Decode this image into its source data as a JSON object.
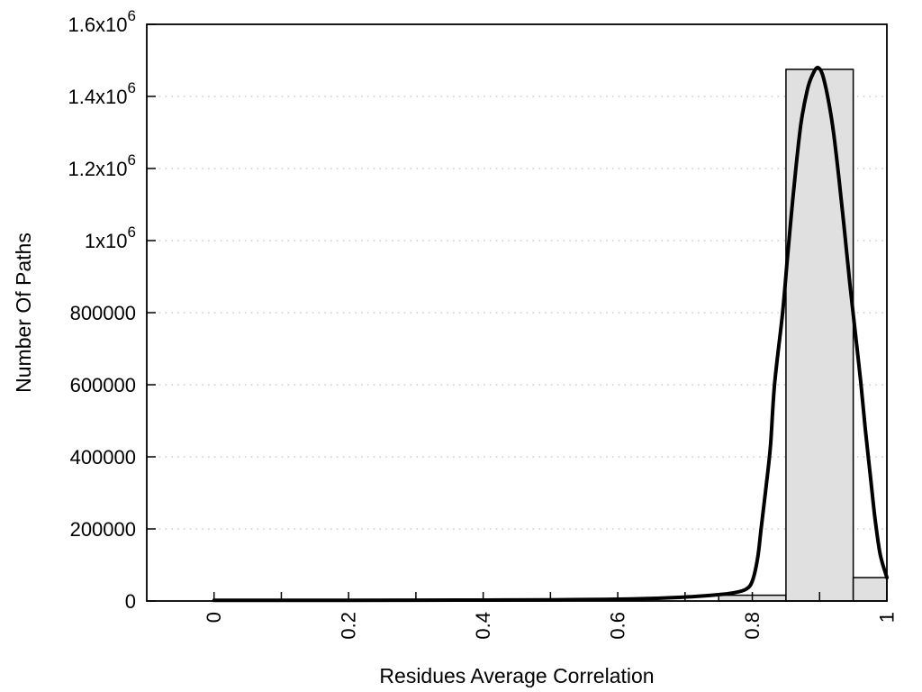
{
  "chart_data": {
    "type": "bar",
    "subtype": "histogram-with-fit-curve",
    "title": "",
    "xlabel": "Residues Average Correlation",
    "ylabel": "Number Of Paths",
    "xlim": [
      -0.1,
      1.0
    ],
    "ylim": [
      0,
      1600000
    ],
    "grid": "horizontal dotted lines at labeled y ticks",
    "legend": "none",
    "xticks": [
      0,
      0.1,
      0.2,
      0.3,
      0.4,
      0.5,
      0.6,
      0.7,
      0.8,
      0.9,
      1.0
    ],
    "xtick_labels": [
      {
        "value": 0.0,
        "label": "0"
      },
      {
        "value": 0.2,
        "label": "0.2"
      },
      {
        "value": 0.4,
        "label": "0.4"
      },
      {
        "value": 0.6,
        "label": "0.6"
      },
      {
        "value": 0.8,
        "label": "0.8"
      },
      {
        "value": 1.0,
        "label": "1"
      }
    ],
    "ytick_labels": [
      {
        "value": 0,
        "label": "0"
      },
      {
        "value": 200000,
        "label": "200000"
      },
      {
        "value": 400000,
        "label": "400000"
      },
      {
        "value": 600000,
        "label": "600000"
      },
      {
        "value": 800000,
        "label": "800000"
      },
      {
        "value": 1000000,
        "label": "1x10^6"
      },
      {
        "value": 1200000,
        "label": "1.2x10^6"
      },
      {
        "value": 1400000,
        "label": "1.4x10^6"
      },
      {
        "value": 1600000,
        "label": "1.6x10^6"
      }
    ],
    "bars": {
      "series_name": "path-count-histogram",
      "bin_width": 0.1,
      "items": [
        {
          "x_start": 0.75,
          "x_end": 0.85,
          "count": 16000
        },
        {
          "x_start": 0.85,
          "x_end": 0.95,
          "count": 1475000
        },
        {
          "x_start": 0.95,
          "x_end": 1.0,
          "count": 65000
        }
      ]
    },
    "curve": {
      "series_name": "fit-curve",
      "peak": {
        "x": 0.897,
        "y": 1480000
      },
      "points": [
        [
          0.0,
          2000
        ],
        [
          0.1,
          2000
        ],
        [
          0.2,
          2000
        ],
        [
          0.3,
          2200
        ],
        [
          0.4,
          2500
        ],
        [
          0.5,
          3200
        ],
        [
          0.58,
          4500
        ],
        [
          0.64,
          6500
        ],
        [
          0.7,
          11000
        ],
        [
          0.74,
          16000
        ],
        [
          0.77,
          22000
        ],
        [
          0.79,
          32000
        ],
        [
          0.8,
          55000
        ],
        [
          0.808,
          120000
        ],
        [
          0.813,
          200000
        ],
        [
          0.82,
          310000
        ],
        [
          0.827,
          430000
        ],
        [
          0.833,
          600000
        ],
        [
          0.845,
          800000
        ],
        [
          0.853,
          970000
        ],
        [
          0.862,
          1150000
        ],
        [
          0.872,
          1320000
        ],
        [
          0.882,
          1420000
        ],
        [
          0.89,
          1462000
        ],
        [
          0.897,
          1480000
        ],
        [
          0.904,
          1462000
        ],
        [
          0.912,
          1400000
        ],
        [
          0.92,
          1310000
        ],
        [
          0.928,
          1185000
        ],
        [
          0.936,
          1045000
        ],
        [
          0.945,
          880000
        ],
        [
          0.953,
          745000
        ],
        [
          0.961,
          610000
        ],
        [
          0.968,
          475000
        ],
        [
          0.975,
          355000
        ],
        [
          0.982,
          235000
        ],
        [
          0.99,
          130000
        ],
        [
          1.0,
          65000
        ]
      ]
    },
    "colors": {
      "background": "#ffffff",
      "bar_fill": "#e0e0e0",
      "bar_stroke": "#000000",
      "curve": "#000000",
      "grid": "#c8c8c8",
      "axis": "#000000",
      "text": "#000000"
    }
  }
}
